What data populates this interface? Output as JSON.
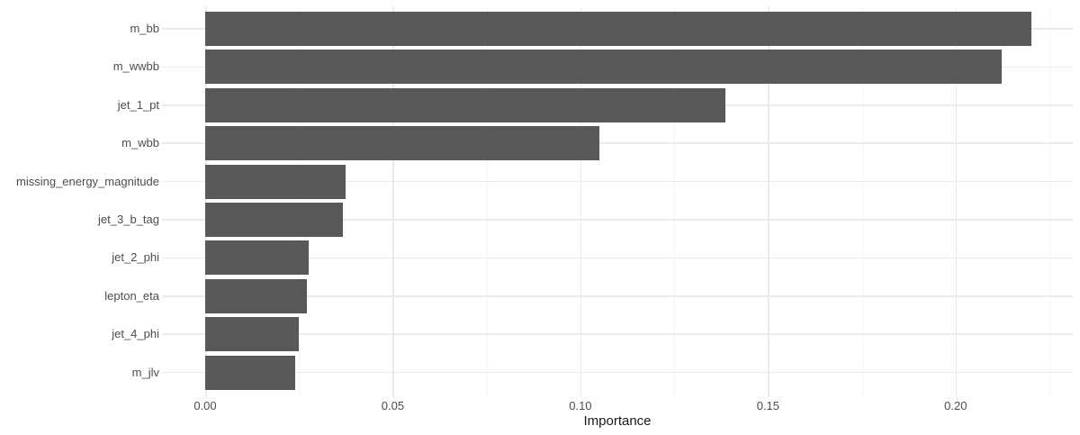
{
  "chart_data": {
    "type": "bar",
    "orientation": "horizontal",
    "title": "",
    "xlabel": "Importance",
    "ylabel": "",
    "categories": [
      "m_bb",
      "m_wwbb",
      "jet_1_pt",
      "m_wbb",
      "missing_energy_magnitude",
      "jet_3_b_tag",
      "jet_2_phi",
      "lepton_eta",
      "jet_4_phi",
      "m_jlv"
    ],
    "values": [
      0.2203,
      0.2124,
      0.1386,
      0.1051,
      0.0374,
      0.0367,
      0.0275,
      0.0272,
      0.025,
      0.0241
    ],
    "xlim": [
      0,
      0.2315
    ],
    "x_major_ticks": [
      0,
      0.05,
      0.1,
      0.15,
      0.2
    ],
    "x_tick_labels": [
      "0.00",
      "0.05",
      "0.10",
      "0.15",
      "0.20"
    ],
    "x_minor_ticks": [
      0.025,
      0.075,
      0.125,
      0.175,
      0.225
    ],
    "grid": true,
    "legend_position": "none",
    "colors": {
      "bar_fill": "#595959",
      "grid_major": "#ebebeb",
      "grid_minor": "#f4f4f4",
      "tick_label_text": "#4d4d4d",
      "axis_title_text": "#1a1a1a",
      "background": "#ffffff"
    }
  }
}
